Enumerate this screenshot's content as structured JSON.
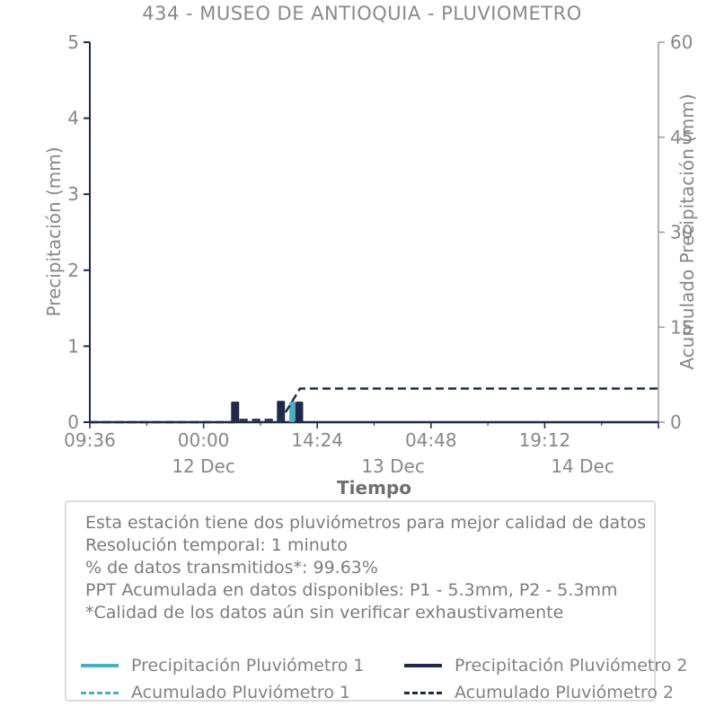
{
  "title": "434 - MUSEO DE ANTIOQUIA - PLUVIOMETRO",
  "colors": {
    "teal": "#45b2c4",
    "navy": "#20294a",
    "axis_text": "#878787",
    "right_axis": "#9a9a9a",
    "box_border": "#dcdcdc"
  },
  "chart_data": {
    "type": "mixed-bar-line",
    "title": "434 - MUSEO DE ANTIOQUIA - PLUVIOMETRO",
    "grid": false,
    "legend_position": "bottom",
    "x_axis": {
      "label": "Tiempo",
      "range_hours": [
        0,
        72
      ],
      "major_ticks": [
        {
          "hour": 0,
          "label": "09:36"
        },
        {
          "hour": 14.4,
          "label": "00:00"
        },
        {
          "hour": 28.8,
          "label": "14:24"
        },
        {
          "hour": 43.2,
          "label": "04:48"
        },
        {
          "hour": 57.6,
          "label": "19:12"
        },
        {
          "hour": 72,
          "label": ""
        }
      ],
      "minor_tick_hours": [
        7.2,
        21.6,
        36.0,
        50.4,
        64.8
      ],
      "date_labels": [
        {
          "hour": 14.4,
          "label": "12 Dec"
        },
        {
          "hour": 38.4,
          "label": "13 Dec"
        },
        {
          "hour": 62.4,
          "label": "14 Dec"
        }
      ]
    },
    "y_left": {
      "label": "Precipitación (mm)",
      "min": 0,
      "max": 5,
      "ticks": [
        "0",
        "1",
        "2",
        "3",
        "4",
        "5"
      ]
    },
    "y_right": {
      "label": "Acumulado Precipitación (mm)",
      "min": 0,
      "max": 60,
      "ticks": [
        "0",
        "15",
        "30",
        "45",
        "60"
      ]
    },
    "series": [
      {
        "name": "Precipitación Pluviómetro 1",
        "type": "bar",
        "color_key": "teal",
        "points": [
          {
            "t": 25.6,
            "v": 0.27
          }
        ]
      },
      {
        "name": "Precipitación Pluviómetro 2",
        "type": "bar",
        "color_key": "navy",
        "points": [
          {
            "t": 18.4,
            "v": 0.27
          },
          {
            "t": 24.2,
            "v": 0.28
          },
          {
            "t": 26.5,
            "v": 0.27
          }
        ]
      },
      {
        "name": "Acumulado Pluviómetro 1",
        "type": "line",
        "dash": true,
        "color_key": "teal",
        "points": [
          {
            "t": 0,
            "v": 0
          },
          {
            "t": 18.3,
            "v": 0
          },
          {
            "t": 18.5,
            "v": 0.35
          },
          {
            "t": 24.2,
            "v": 0.35
          },
          {
            "t": 26.6,
            "v": 5.3
          },
          {
            "t": 72,
            "v": 5.3
          }
        ]
      },
      {
        "name": "Acumulado Pluviómetro 2",
        "type": "line",
        "dash": true,
        "color_key": "navy",
        "points": [
          {
            "t": 0,
            "v": 0
          },
          {
            "t": 18.3,
            "v": 0
          },
          {
            "t": 18.5,
            "v": 0.35
          },
          {
            "t": 24.2,
            "v": 0.35
          },
          {
            "t": 26.6,
            "v": 5.3
          },
          {
            "t": 72,
            "v": 5.3
          }
        ]
      }
    ]
  },
  "info": {
    "lines": [
      "Esta estación tiene dos pluviómetros para mejor calidad de datos",
      "Resolución temporal: 1 minuto",
      "% de datos transmitidos*: 99.63%",
      "PPT Acumulada en datos disponibles: P1 - 5.3mm, P2 - 5.3mm",
      "*Calidad de los datos aún sin verificar exhaustivamente"
    ]
  },
  "legend": {
    "items": [
      {
        "label": "Precipitación Pluviómetro 1",
        "style": "solid",
        "color_key": "teal"
      },
      {
        "label": "Precipitación Pluviómetro 2",
        "style": "solid",
        "color_key": "navy"
      },
      {
        "label": "Acumulado Pluviómetro 1",
        "style": "dashed",
        "color_key": "teal"
      },
      {
        "label": "Acumulado Pluviómetro 2",
        "style": "dashed",
        "color_key": "navy"
      }
    ]
  }
}
